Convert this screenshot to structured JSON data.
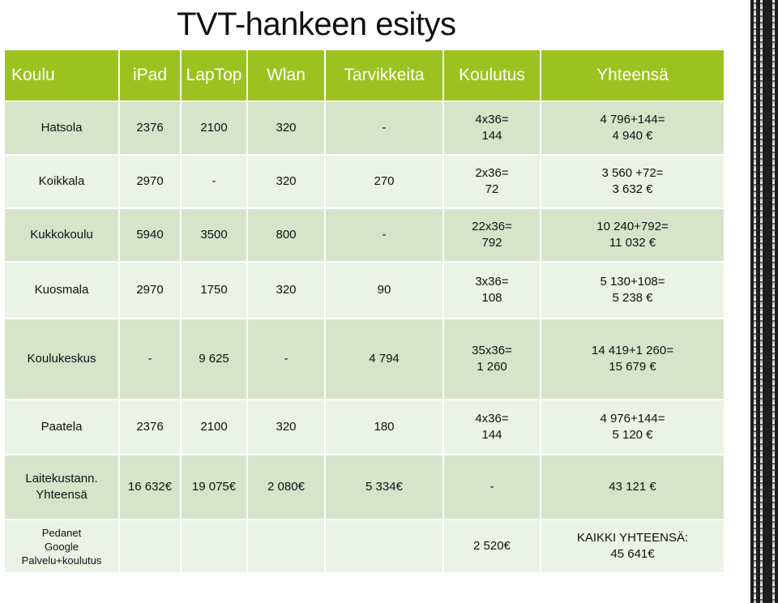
{
  "title": "TVT-hankeen esitys",
  "headers": [
    "Koulu",
    "iPad",
    "LapTop",
    "Wlan",
    "Tarvikkeita",
    "Koulutus",
    "Yhteensä"
  ],
  "rows": [
    {
      "school": "Hatsola",
      "ipad": "2376",
      "laptop": "2100",
      "wlan": "320",
      "tarv": "-",
      "kl1": "4x36=",
      "kl2": "144",
      "tot1": "4 796+144=",
      "tot2": "4 940 €"
    },
    {
      "school": "Koikkala",
      "ipad": "2970",
      "laptop": "-",
      "wlan": "320",
      "tarv": "270",
      "kl1": "2x36=",
      "kl2": "72",
      "tot1": "3 560 +72=",
      "tot2": "3 632 €"
    },
    {
      "school": "Kukkokoulu",
      "ipad": "5940",
      "laptop": "3500",
      "wlan": "800",
      "tarv": "-",
      "kl1": "22x36=",
      "kl2": "792",
      "tot1": "10 240+792=",
      "tot2": "11 032 €"
    },
    {
      "school": "Kuosmala",
      "ipad": "2970",
      "laptop": "1750",
      "wlan": "320",
      "tarv": "90",
      "kl1": "3x36=",
      "kl2": "108",
      "tot1": "5 130+108=",
      "tot2": "5 238 €"
    },
    {
      "school": "Koulukeskus",
      "ipad": "-",
      "laptop": "9 625",
      "wlan": "-",
      "tarv": "4 794",
      "kl1": "35x36=",
      "kl2": "1 260",
      "tot1": "14 419+1 260=",
      "tot2": "15 679 €"
    },
    {
      "school": "Paatela",
      "ipad": "2376",
      "laptop": "2100",
      "wlan": "320",
      "tarv": "180",
      "kl1": "4x36=",
      "kl2": "144",
      "tot1": "4 976+144=",
      "tot2": "5 120 €"
    }
  ],
  "totals": {
    "label1": "Laitekustann.",
    "label2": "Yhteensä",
    "ipad": "16 632€",
    "laptop": "19 075€",
    "wlan": "2 080€",
    "tarv": "5 334€",
    "koulutus": "-",
    "total": "43 121 €"
  },
  "last": {
    "line1": "Pedanet",
    "line2": "Google",
    "line3": "Palvelu+koulutus",
    "koulutus": "2 520€",
    "grand1": "KAIKKI YHTEENSÄ:",
    "grand2": "45 641€"
  }
}
